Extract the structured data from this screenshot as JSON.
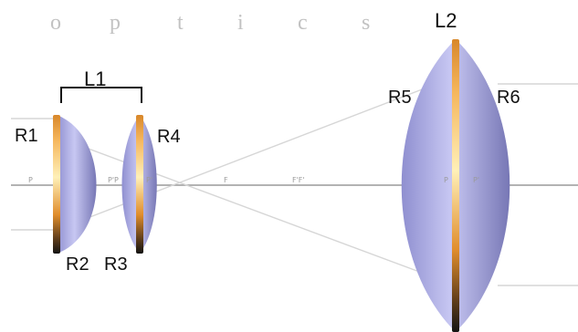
{
  "header": {
    "brand_letters": [
      "o",
      "p",
      "t",
      "i",
      "c",
      "s"
    ]
  },
  "lens_labels": {
    "L1": "L1",
    "L2": "L2"
  },
  "surface_labels": {
    "R1": "R1",
    "R2": "R2",
    "R3": "R3",
    "R4": "R4",
    "R5": "R5",
    "R6": "R6"
  },
  "axis_marks": {
    "p1": "P",
    "p2": "P'P",
    "p3": "P'",
    "f": "F",
    "ff": "F'F'",
    "p4": "P",
    "p5": "P'"
  },
  "colors": {
    "lens_body": "#a9a9e6",
    "lens_core": "#f3a640",
    "axis": "#9a9a9a",
    "ray": "#d2d2d2"
  }
}
